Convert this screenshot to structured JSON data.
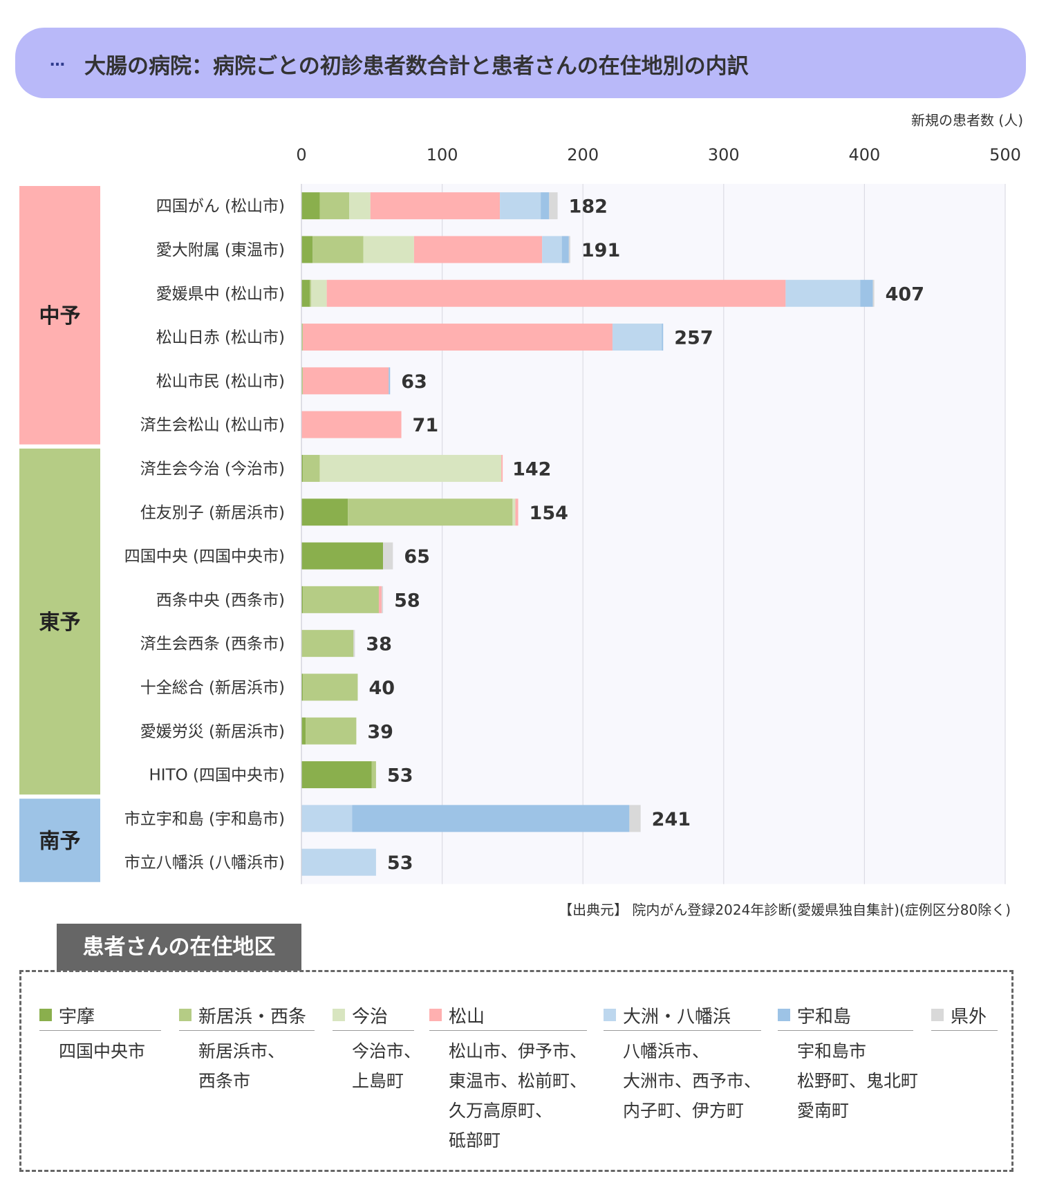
{
  "header": {
    "dots": "…",
    "title": "大腸の病院：病院ごとの初診患者数合計と患者さんの在住地別の内訳"
  },
  "chart_data": {
    "type": "bar",
    "orientation": "horizontal",
    "stacked": true,
    "xlabel": "新規の患者数 (人)",
    "xlim": [
      0,
      500
    ],
    "xticks": [
      0,
      100,
      200,
      300,
      400,
      500
    ],
    "grid": true,
    "categories": [
      "四国がん (松山市)",
      "愛大附属 (東温市)",
      "愛媛県中 (松山市)",
      "松山日赤 (松山市)",
      "松山市民 (松山市)",
      "済生会松山 (松山市)",
      "済生会今治 (今治市)",
      "住友別子 (新居浜市)",
      "四国中央 (四国中央市)",
      "西条中央 (西条市)",
      "済生会西条 (西条市)",
      "十全総合 (新居浜市)",
      "愛媛労災 (新居浜市)",
      "HITO (四国中央市)",
      "市立宇和島 (宇和島市)",
      "市立八幡浜 (八幡浜市)"
    ],
    "totals": [
      182,
      191,
      407,
      257,
      63,
      71,
      142,
      154,
      65,
      58,
      38,
      40,
      39,
      53,
      241,
      53
    ],
    "series": [
      {
        "name": "宇摩",
        "color": "#8aaf4d",
        "values": [
          13,
          8,
          6,
          0,
          0,
          0,
          1,
          33,
          58,
          1,
          0,
          1,
          3,
          50,
          0,
          0
        ]
      },
      {
        "name": "新居浜・西条",
        "color": "#b5cc85",
        "values": [
          21,
          36,
          1,
          1,
          1,
          0,
          12,
          117,
          0,
          54,
          37,
          39,
          36,
          3,
          0,
          0
        ]
      },
      {
        "name": "今治",
        "color": "#d8e5c0",
        "values": [
          15,
          36,
          11,
          0,
          0,
          0,
          129,
          2,
          0,
          0,
          0,
          0,
          0,
          0,
          0,
          0
        ]
      },
      {
        "name": "松山",
        "color": "#ffb0b0",
        "values": [
          92,
          91,
          326,
          220,
          61,
          71,
          1,
          2,
          0,
          2,
          0,
          0,
          0,
          0,
          0,
          0
        ]
      },
      {
        "name": "大洲・八幡浜",
        "color": "#bdd7ee",
        "values": [
          29,
          14,
          53,
          35,
          0,
          0,
          0,
          0,
          0,
          0,
          0,
          0,
          0,
          0,
          36,
          53
        ]
      },
      {
        "name": "宇和島",
        "color": "#9dc3e6",
        "values": [
          6,
          5,
          9,
          1,
          1,
          0,
          0,
          0,
          0,
          0,
          0,
          0,
          0,
          0,
          197,
          0
        ]
      },
      {
        "name": "県外",
        "color": "#d9d9d9",
        "values": [
          6,
          1,
          1,
          0,
          0,
          0,
          0,
          0,
          7,
          1,
          1,
          0,
          0,
          0,
          8,
          0
        ]
      }
    ],
    "groups": [
      {
        "label": "中予",
        "color": "#ffb0b0",
        "start": 0,
        "end": 5
      },
      {
        "label": "東予",
        "color": "#b5cc85",
        "start": 6,
        "end": 13
      },
      {
        "label": "南予",
        "color": "#9dc3e6",
        "start": 14,
        "end": 15
      }
    ]
  },
  "source": "【出典元】 院内がん登録2024年診断(愛媛県独自集計)(症例区分80除く)",
  "legend": {
    "title": "患者さんの在住地区",
    "items": [
      {
        "name": "宇摩",
        "color": "#8aaf4d",
        "areas": [
          "四国中央市"
        ]
      },
      {
        "name": "新居浜・西条",
        "color": "#b5cc85",
        "areas": [
          "新居浜市、",
          "西条市"
        ]
      },
      {
        "name": "今治",
        "color": "#d8e5c0",
        "areas": [
          "今治市、",
          "上島町"
        ]
      },
      {
        "name": "松山",
        "color": "#ffb0b0",
        "areas": [
          "松山市、伊予市、",
          "東温市、松前町、",
          "久万高原町、",
          "砥部町"
        ]
      },
      {
        "name": "大洲・八幡浜",
        "color": "#bdd7ee",
        "areas": [
          "八幡浜市、",
          "大洲市、西予市、",
          "内子町、伊方町"
        ]
      },
      {
        "name": "宇和島",
        "color": "#9dc3e6",
        "areas": [
          "宇和島市",
          "松野町、鬼北町",
          "愛南町"
        ]
      },
      {
        "name": "県外",
        "color": "#d9d9d9",
        "areas": []
      }
    ]
  }
}
